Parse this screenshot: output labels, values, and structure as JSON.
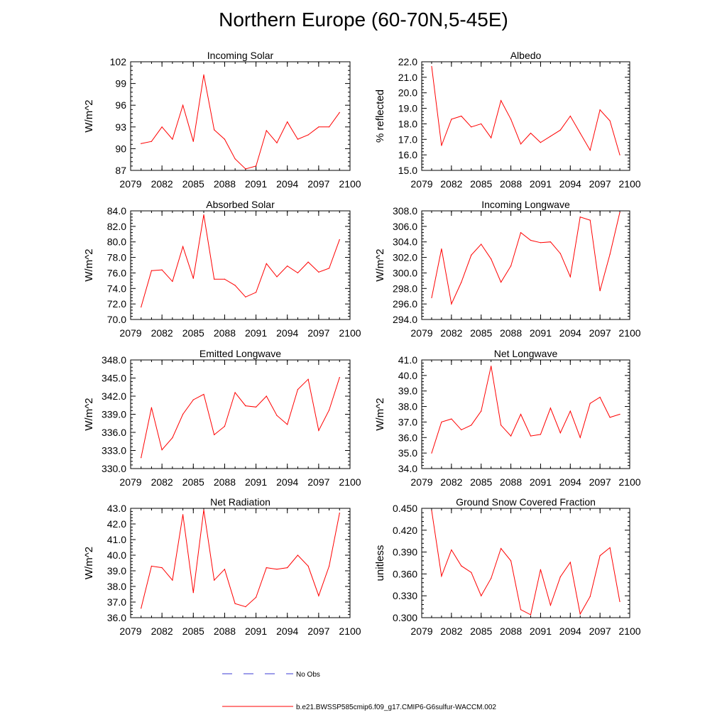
{
  "page_title": "Northern Europe (60-70N,5-45E)",
  "legend": {
    "obs_label": "No Obs",
    "model_label": "b.e21.BWSSP585cmip6.f09_g17.CMIP6-G6sulfur-WACCM.002",
    "obs_color": "#3b3bd6",
    "model_color": "#ff0000"
  },
  "chart_data": [
    {
      "type": "line",
      "title": "Incoming Solar",
      "ylabel": "W/m^2",
      "xlim": [
        2079,
        2100
      ],
      "ylim": [
        87,
        102
      ],
      "x_ticks": [
        "2079",
        "2082",
        "2085",
        "2088",
        "2091",
        "2094",
        "2097",
        "2100"
      ],
      "y_ticks": [
        "87",
        "90",
        "93",
        "96",
        "99",
        "102"
      ],
      "x": [
        2080,
        2081,
        2082,
        2083,
        2084,
        2085,
        2086,
        2087,
        2088,
        2089,
        2090,
        2091,
        2092,
        2093,
        2094,
        2095,
        2096,
        2097,
        2098,
        2099
      ],
      "values": [
        90.7,
        91.0,
        93.0,
        91.3,
        96.0,
        91.0,
        100.2,
        92.6,
        91.3,
        88.6,
        87.2,
        87.6,
        92.5,
        90.8,
        93.7,
        91.3,
        91.9,
        93.0,
        93.0,
        95.0
      ]
    },
    {
      "type": "line",
      "title": "Albedo",
      "ylabel": "% reflected",
      "xlim": [
        2079,
        2100
      ],
      "ylim": [
        15.0,
        22.0
      ],
      "x_ticks": [
        "2079",
        "2082",
        "2085",
        "2088",
        "2091",
        "2094",
        "2097",
        "2100"
      ],
      "y_ticks": [
        "15.0",
        "16.0",
        "17.0",
        "18.0",
        "19.0",
        "20.0",
        "21.0",
        "22.0"
      ],
      "x": [
        2080,
        2081,
        2082,
        2083,
        2084,
        2085,
        2086,
        2087,
        2088,
        2089,
        2090,
        2091,
        2092,
        2093,
        2094,
        2095,
        2096,
        2097,
        2098,
        2099
      ],
      "values": [
        21.7,
        16.6,
        18.3,
        18.5,
        17.8,
        18.0,
        17.1,
        19.5,
        18.3,
        16.7,
        17.4,
        16.8,
        17.2,
        17.6,
        18.5,
        17.4,
        16.3,
        18.9,
        18.2,
        16.0
      ]
    },
    {
      "type": "line",
      "title": "Absorbed Solar",
      "ylabel": "W/m^2",
      "xlim": [
        2079,
        2100
      ],
      "ylim": [
        70.0,
        84.0
      ],
      "x_ticks": [
        "2079",
        "2082",
        "2085",
        "2088",
        "2091",
        "2094",
        "2097",
        "2100"
      ],
      "y_ticks": [
        "70.0",
        "72.0",
        "74.0",
        "76.0",
        "78.0",
        "80.0",
        "82.0",
        "84.0"
      ],
      "x": [
        2080,
        2081,
        2082,
        2083,
        2084,
        2085,
        2086,
        2087,
        2088,
        2089,
        2090,
        2091,
        2092,
        2093,
        2094,
        2095,
        2096,
        2097,
        2098,
        2099
      ],
      "values": [
        71.6,
        76.3,
        76.4,
        74.9,
        79.4,
        75.3,
        83.5,
        75.2,
        75.2,
        74.4,
        72.9,
        73.5,
        77.2,
        75.5,
        76.9,
        76.0,
        77.4,
        76.1,
        76.6,
        80.3
      ]
    },
    {
      "type": "line",
      "title": "Incoming Longwave",
      "ylabel": "W/m^2",
      "xlim": [
        2079,
        2100
      ],
      "ylim": [
        294.0,
        308.0
      ],
      "x_ticks": [
        "2079",
        "2082",
        "2085",
        "2088",
        "2091",
        "2094",
        "2097",
        "2100"
      ],
      "y_ticks": [
        "294.0",
        "296.0",
        "298.0",
        "300.0",
        "302.0",
        "304.0",
        "306.0",
        "308.0"
      ],
      "x": [
        2080,
        2081,
        2082,
        2083,
        2084,
        2085,
        2086,
        2087,
        2088,
        2089,
        2090,
        2091,
        2092,
        2093,
        2094,
        2095,
        2096,
        2097,
        2098,
        2099
      ],
      "values": [
        296.8,
        303.1,
        296.0,
        298.8,
        302.3,
        303.7,
        301.8,
        298.8,
        300.9,
        305.2,
        304.2,
        303.9,
        304.0,
        302.5,
        299.5,
        307.2,
        306.8,
        297.7,
        302.4,
        307.8
      ]
    },
    {
      "type": "line",
      "title": "Emitted Longwave",
      "ylabel": "W/m^2",
      "xlim": [
        2079,
        2100
      ],
      "ylim": [
        330.0,
        348.0
      ],
      "x_ticks": [
        "2079",
        "2082",
        "2085",
        "2088",
        "2091",
        "2094",
        "2097",
        "2100"
      ],
      "y_ticks": [
        "330.0",
        "333.0",
        "336.0",
        "339.0",
        "342.0",
        "345.0",
        "348.0"
      ],
      "x": [
        2080,
        2081,
        2082,
        2083,
        2084,
        2085,
        2086,
        2087,
        2088,
        2089,
        2090,
        2091,
        2092,
        2093,
        2094,
        2095,
        2096,
        2097,
        2098,
        2099
      ],
      "values": [
        331.8,
        340.1,
        333.1,
        335.1,
        339.0,
        341.4,
        342.3,
        335.6,
        337.0,
        342.6,
        340.4,
        340.2,
        342.0,
        338.8,
        337.3,
        343.1,
        344.8,
        336.3,
        339.7,
        345.1
      ]
    },
    {
      "type": "line",
      "title": "Net Longwave",
      "ylabel": "W/m^2",
      "xlim": [
        2079,
        2100
      ],
      "ylim": [
        34.0,
        41.0
      ],
      "x_ticks": [
        "2079",
        "2082",
        "2085",
        "2088",
        "2091",
        "2094",
        "2097",
        "2100"
      ],
      "y_ticks": [
        "34.0",
        "35.0",
        "36.0",
        "37.0",
        "38.0",
        "39.0",
        "40.0",
        "41.0"
      ],
      "x": [
        2080,
        2081,
        2082,
        2083,
        2084,
        2085,
        2086,
        2087,
        2088,
        2089,
        2090,
        2091,
        2092,
        2093,
        2094,
        2095,
        2096,
        2097,
        2098,
        2099
      ],
      "values": [
        35.0,
        37.0,
        37.2,
        36.5,
        36.8,
        37.7,
        40.6,
        36.8,
        36.1,
        37.5,
        36.1,
        36.2,
        37.9,
        36.3,
        37.7,
        36.0,
        38.2,
        38.6,
        37.3,
        37.5
      ]
    },
    {
      "type": "line",
      "title": "Net Radiation",
      "ylabel": "W/m^2",
      "xlim": [
        2079,
        2100
      ],
      "ylim": [
        36.0,
        43.0
      ],
      "x_ticks": [
        "2079",
        "2082",
        "2085",
        "2088",
        "2091",
        "2094",
        "2097",
        "2100"
      ],
      "y_ticks": [
        "36.0",
        "37.0",
        "38.0",
        "39.0",
        "40.0",
        "41.0",
        "42.0",
        "43.0"
      ],
      "x": [
        2080,
        2081,
        2082,
        2083,
        2084,
        2085,
        2086,
        2087,
        2088,
        2089,
        2090,
        2091,
        2092,
        2093,
        2094,
        2095,
        2096,
        2097,
        2098,
        2099
      ],
      "values": [
        36.6,
        39.3,
        39.2,
        38.4,
        42.6,
        37.6,
        42.9,
        38.4,
        39.1,
        36.9,
        36.7,
        37.3,
        39.2,
        39.1,
        39.2,
        40.0,
        39.3,
        37.4,
        39.3,
        42.7
      ]
    },
    {
      "type": "line",
      "title": "Ground Snow Covered Fraction",
      "ylabel": "unitless",
      "xlim": [
        2079,
        2100
      ],
      "ylim": [
        0.3,
        0.45
      ],
      "x_ticks": [
        "2079",
        "2082",
        "2085",
        "2088",
        "2091",
        "2094",
        "2097",
        "2100"
      ],
      "y_ticks": [
        "0.300",
        "0.330",
        "0.360",
        "0.390",
        "0.420",
        "0.450"
      ],
      "x": [
        2080,
        2081,
        2082,
        2083,
        2084,
        2085,
        2086,
        2087,
        2088,
        2089,
        2090,
        2091,
        2092,
        2093,
        2094,
        2095,
        2096,
        2097,
        2098,
        2099
      ],
      "values": [
        0.447,
        0.357,
        0.393,
        0.371,
        0.362,
        0.33,
        0.354,
        0.395,
        0.378,
        0.311,
        0.304,
        0.366,
        0.317,
        0.356,
        0.376,
        0.305,
        0.329,
        0.385,
        0.396,
        0.322
      ]
    }
  ]
}
